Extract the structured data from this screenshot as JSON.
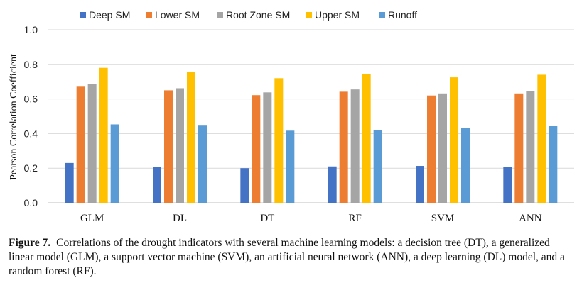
{
  "chart_data": {
    "type": "bar",
    "categories": [
      "GLM",
      "DL",
      "DT",
      "RF",
      "SVM",
      "ANN"
    ],
    "series": [
      {
        "name": "Deep SM",
        "color": "#4472C4",
        "values": [
          0.23,
          0.205,
          0.2,
          0.21,
          0.213,
          0.208
        ]
      },
      {
        "name": "Lower SM",
        "color": "#ED7D31",
        "values": [
          0.675,
          0.65,
          0.622,
          0.642,
          0.62,
          0.632
        ]
      },
      {
        "name": "Root Zone SM",
        "color": "#A5A5A5",
        "values": [
          0.685,
          0.662,
          0.638,
          0.655,
          0.632,
          0.647
        ]
      },
      {
        "name": "Upper SM",
        "color": "#FFC000",
        "values": [
          0.78,
          0.758,
          0.72,
          0.742,
          0.725,
          0.74
        ]
      },
      {
        "name": "Runoff",
        "color": "#5B9BD5",
        "values": [
          0.453,
          0.45,
          0.417,
          0.42,
          0.432,
          0.445
        ]
      }
    ],
    "title": "",
    "xlabel": "",
    "ylabel": "Pearson Correlation Coefficient",
    "ylim": [
      0,
      1.0
    ],
    "yticks": [
      "0.0",
      "0.2",
      "0.4",
      "0.6",
      "0.8",
      "1.0"
    ],
    "grid": true,
    "legend": "top-center"
  },
  "caption": {
    "label": "Figure 7.",
    "text": "Correlations of the drought indicators with several machine learning models: a decision tree (DT), a generalized linear model (GLM), a support vector machine (SVM), an artificial neural network (ANN), a deep learning (DL) model, and a random forest (RF)."
  }
}
